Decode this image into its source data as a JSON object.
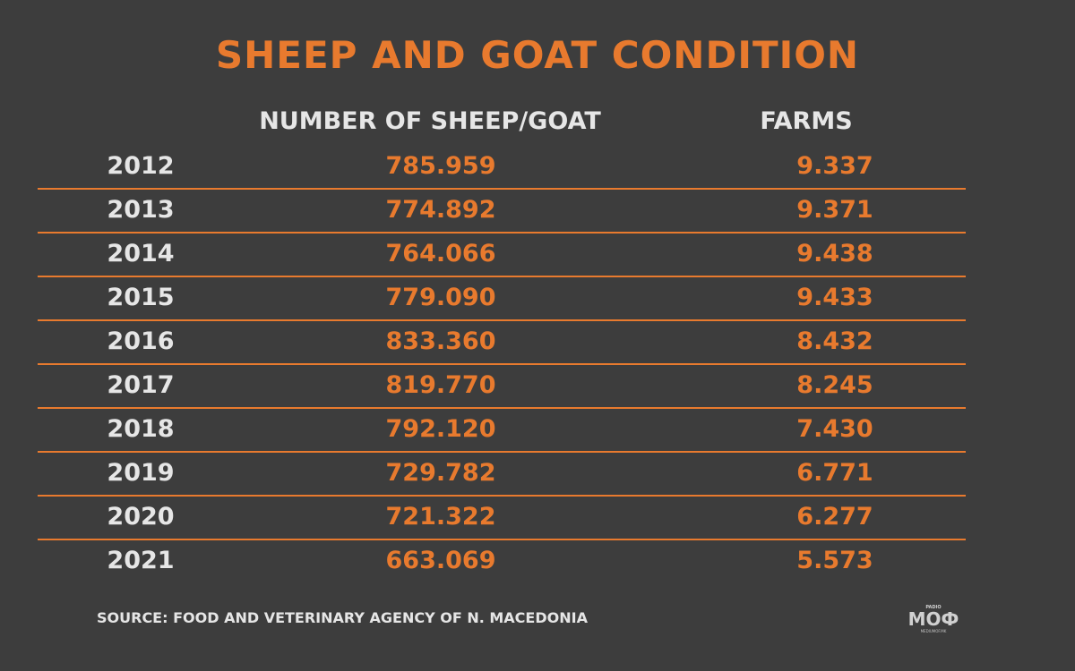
{
  "title": "SHEEP AND GOAT CONDITION",
  "columns": {
    "year": "",
    "sheep": "NUMBER OF SHEEP/GOAT",
    "farms": "FARMS"
  },
  "chart_data": {
    "type": "table",
    "title": "SHEEP AND GOAT CONDITION",
    "columns": [
      "",
      "NUMBER OF SHEEP/GOAT",
      "FARMS"
    ],
    "rows": [
      {
        "year": "2012",
        "sheep": "785.959",
        "farms": "9.337"
      },
      {
        "year": "2013",
        "sheep": "774.892",
        "farms": "9.371"
      },
      {
        "year": "2014",
        "sheep": "764.066",
        "farms": "9.438"
      },
      {
        "year": "2015",
        "sheep": "779.090",
        "farms": "9.433"
      },
      {
        "year": "2016",
        "sheep": "833.360",
        "farms": "8.432"
      },
      {
        "year": "2017",
        "sheep": "819.770",
        "farms": "8.245"
      },
      {
        "year": "2018",
        "sheep": "792.120",
        "farms": "7.430"
      },
      {
        "year": "2019",
        "sheep": "729.782",
        "farms": "6.771"
      },
      {
        "year": "2020",
        "sheep": "721.322",
        "farms": "6.277"
      },
      {
        "year": "2021",
        "sheep": "663.069",
        "farms": "5.573"
      }
    ]
  },
  "source": "SOURCE: FOOD AND VETERINARY AGENCY OF N. MACEDONIA",
  "logo": {
    "top_text": "PADIO",
    "main_text": "МОФ",
    "bottom_text": "MEDIUMOF.MK"
  },
  "colors": {
    "background": "#3d3d3d",
    "accent": "#e87a2e",
    "text_light": "#e6e6e6"
  }
}
